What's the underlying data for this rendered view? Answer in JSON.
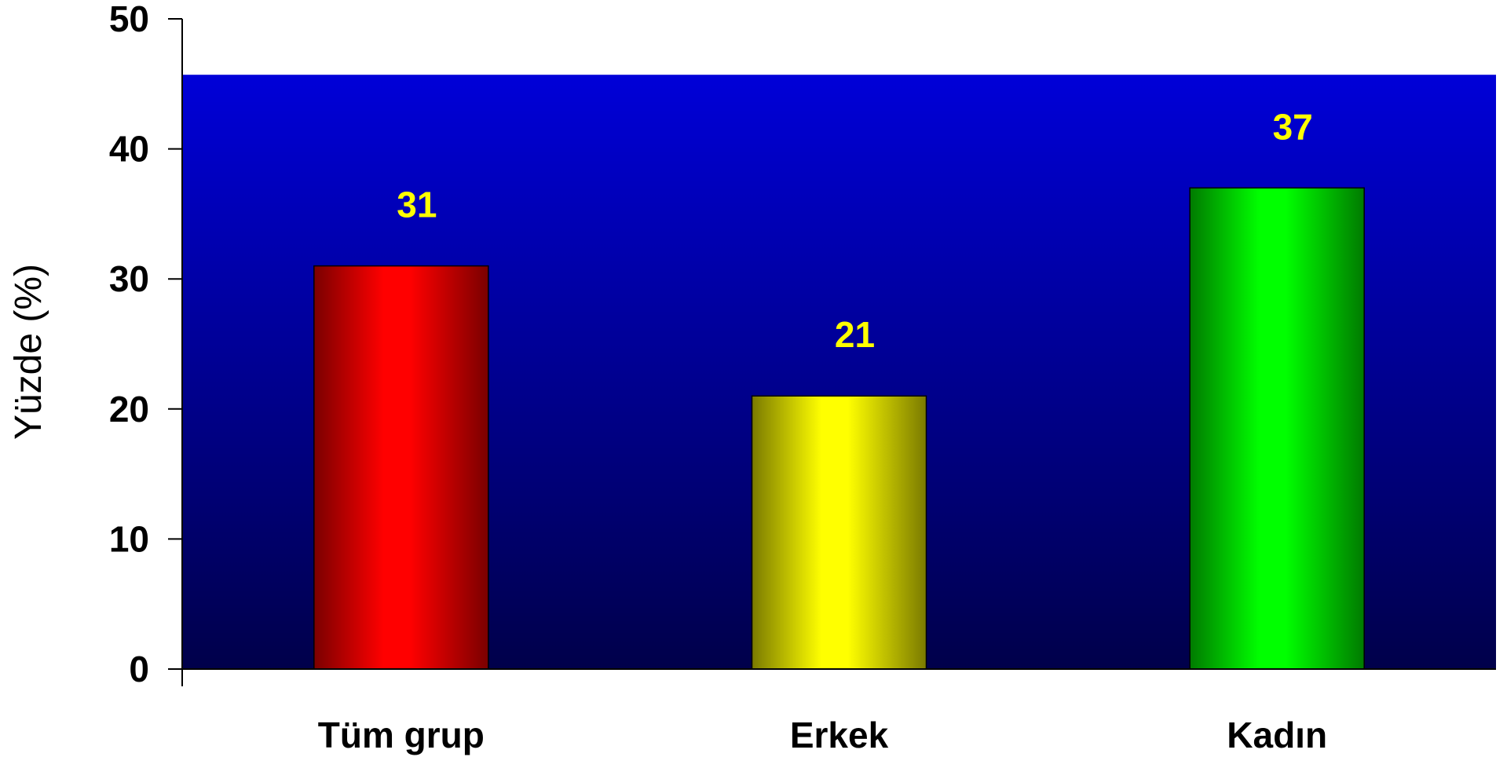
{
  "chart_data": {
    "type": "bar",
    "title": "",
    "xlabel": "",
    "ylabel": "Yüzde (%)",
    "categories": [
      "Tüm grup",
      "Erkek",
      "Kadın"
    ],
    "values": [
      31,
      21,
      37
    ],
    "data_labels": [
      "31",
      "21",
      "37"
    ],
    "ylim": [
      0,
      50
    ],
    "yticks": [
      0,
      10,
      20,
      30,
      40,
      50
    ],
    "plot_area_top_value": 45.7,
    "grid": false,
    "legend": "none",
    "colors": {
      "plot_bg_top": "#0000d8",
      "plot_bg_bottom": "#00004a",
      "bars": [
        "#ff0000",
        "#ffff00",
        "#00ff00"
      ],
      "bar_edges": [
        "#7a0000",
        "#7a7a00",
        "#007a00"
      ],
      "data_label": "#ffff00"
    }
  }
}
